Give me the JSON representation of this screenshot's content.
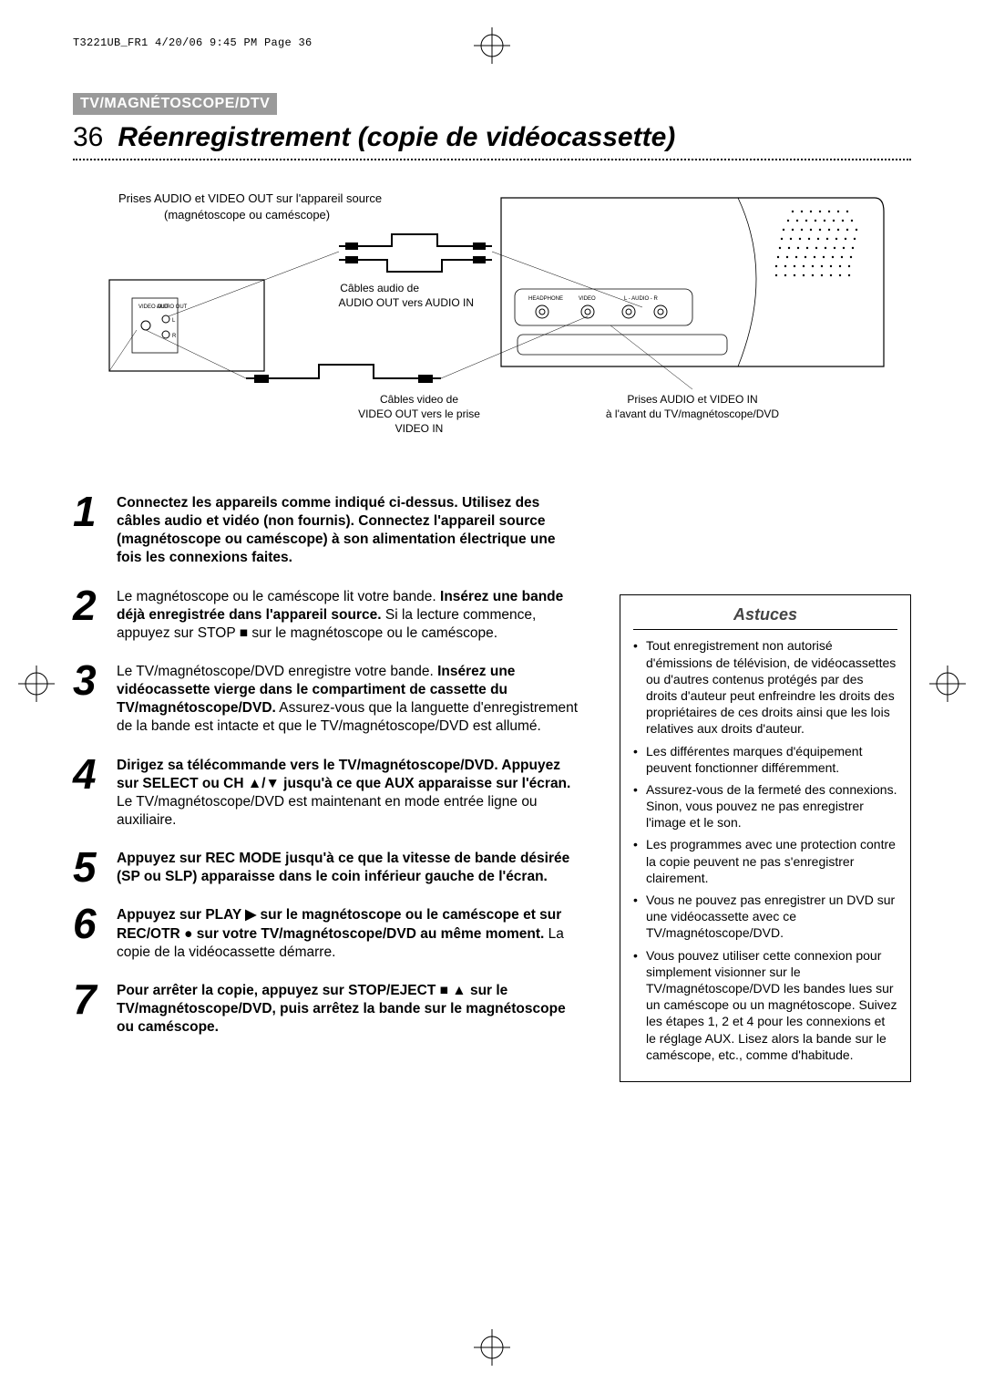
{
  "header_line": "T3221UB_FR1  4/20/06  9:45 PM  Page 36",
  "section_tag": "TV/MAGNÉTOSCOPE/DTV",
  "page_number": "36",
  "title": "Réenregistrement (copie de vidéocassette)",
  "diagram": {
    "label_top1": "Prises AUDIO et VIDEO OUT sur l'appareil source",
    "label_top2": "(magnétoscope ou caméscope)",
    "label_audio_cables1": "Câbles audio de",
    "label_audio_cables2": "AUDIO OUT vers AUDIO IN",
    "label_video_cables1": "Câbles video de",
    "label_video_cables2": "VIDEO OUT vers le prise",
    "label_video_cables3": "VIDEO IN",
    "label_right1": "Prises AUDIO et VIDEO IN",
    "label_right2": "à l'avant du TV/magnétoscope/DVD",
    "jack_labels": {
      "video_out": "VIDEO OUT",
      "audio_out": "AUDIO OUT",
      "l": "L",
      "r": "R",
      "headphone": "HEADPHONE",
      "video": "VIDEO",
      "audio_lr": "L - AUDIO - R"
    }
  },
  "steps": [
    {
      "num": "1",
      "html": "<b>Connectez les appareils comme indiqué ci-dessus. Utilisez des câbles audio et vidéo (non fournis). Connectez l'appareil source (magnéto­scope ou caméscope) à son alimentation élec­trique une fois les connexions faites.</b>"
    },
    {
      "num": "2",
      "html": "Le magnétoscope ou le caméscope lit votre bande. <b>Insérez une bande déjà enregistrée dans l'ap­pareil source.</b> Si la lecture commence, appuyez sur STOP <span class='glyph'>■</span> sur le magnétoscope ou le caméscope."
    },
    {
      "num": "3",
      "html": "Le TV/magnétoscope/DVD enregistre votre bande. <b>Insérez une vidéocassette vierge dans le com­partiment de cassette du TV/magnétoscope/DVD.</b> Assurez-vous que la languette d'enregistrement de la bande est intacte et que le TV/magnétoscope/DVD est allumé."
    },
    {
      "num": "4",
      "html": "<b>Dirigez sa télécommande vers le TV/magnétoscope/DVD. Appuyez sur SELECT ou CH <span class='glyph'>▲</span>/<span class='glyph'>▼</span> jusqu'à ce que AUX apparaisse sur l'écran.</b> Le TV/magnétoscope/DVD est maintenant en mode entrée ligne ou auxiliaire."
    },
    {
      "num": "5",
      "html": "<b>Appuyez sur REC MODE jusqu'à ce que la vitesse de bande désirée (SP ou SLP) appa­raisse dans le coin inférieur gauche de l'écran.</b>"
    },
    {
      "num": "6",
      "html": "<b>Appuyez sur PLAY <span class='glyph'>▶</span> sur le magnétoscope ou le caméscope et sur REC/OTR <span class='glyph'>●</span> sur votre TV/magnétoscope/DVD au même moment.</b> La copie de la vidéocassette démarre."
    },
    {
      "num": "7",
      "html": "<b>Pour arrêter la copie, appuyez sur STOP/EJECT <span class='glyph'>■</span> <span class='glyph'>▲</span> sur le TV/magnétoscope/DVD, puis arrêtez la bande sur le magnétoscope ou caméscope.</b>"
    }
  ],
  "tips": {
    "title": "Astuces",
    "items": [
      "Tout enregistrement non autorisé d'émissions de télévision, de vidéocassettes ou d'autres contenus protégés par des droits d'auteur peut enfreindre les droits des propriétaires de ces droits ainsi que les lois relatives aux droits d'auteur.",
      "Les différentes marques d'équipement peuvent fonctionner différemment.",
      "Assurez-vous de la fermeté des connexions. Sinon, vous pouvez ne pas enregistrer l'image et le son.",
      "Les programmes avec une protection contre la copie peuvent ne pas s'enregistrer clairement.",
      "Vous ne pouvez pas enregistrer un DVD sur une vidéocassette avec ce TV/magnétoscope/DVD.",
      "Vous pouvez utiliser cette connexion pour simplement visionner sur le TV/magnétoscope/DVD les bandes lues sur un caméscope ou un magnétoscope. Suivez les étapes 1, 2 et 4 pour les connexions et le réglage AUX. Lisez alors la bande sur le caméscope, etc., comme d'habitude."
    ]
  },
  "colors": {
    "tag_bg": "#9a9a9a",
    "tag_fg": "#ffffff",
    "text": "#000000",
    "page_bg": "#ffffff"
  }
}
